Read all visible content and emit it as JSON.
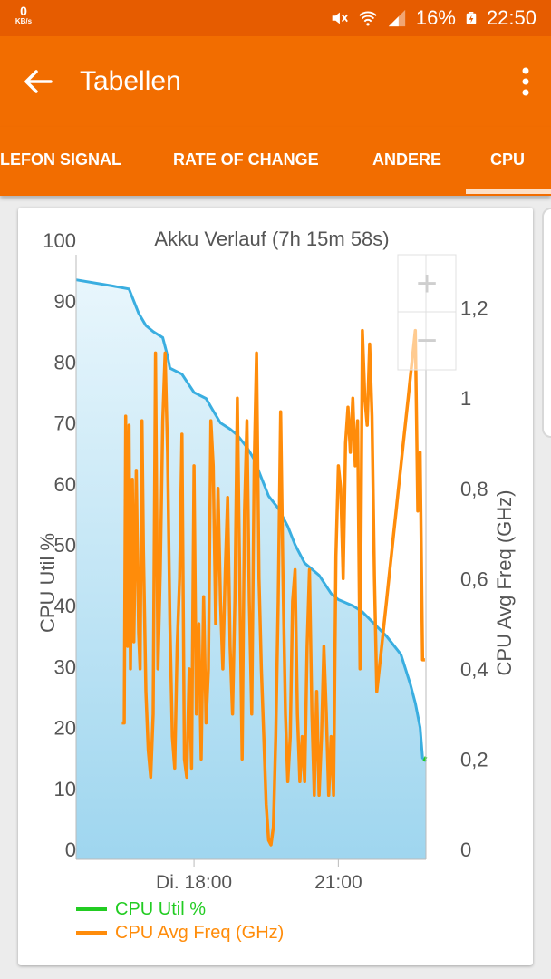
{
  "status_bar": {
    "net_speed": "0",
    "net_speed_unit": "KB/s",
    "battery": "16%",
    "time": "22:50"
  },
  "app_bar": {
    "title": "Tabellen",
    "back_icon": "arrow-left-icon",
    "menu_icon": "more-vert-icon"
  },
  "tabs": [
    {
      "label": "LEFON SIGNAL",
      "selected": false
    },
    {
      "label": "RATE OF CHANGE",
      "selected": false
    },
    {
      "label": "ANDERE",
      "selected": false
    },
    {
      "label": "CPU",
      "selected": true
    }
  ],
  "zoom": {
    "in_label": "+",
    "out_label": "−"
  },
  "colors": {
    "accent": "#f26d00",
    "status_bar": "#e65c00",
    "battery_line": "#3aaee0",
    "battery_fill": "#9fd6ef",
    "cpu_util": "#22cc22",
    "cpu_freq": "#ff8c0a"
  },
  "chart_data": {
    "type": "line",
    "title": "Akku Verlauf (7h 15m 58s)",
    "ylabel": "CPU Util %",
    "y2label": "CPU Avg Freq (GHz)",
    "ylim": [
      0,
      100
    ],
    "y2lim": [
      0,
      1.35
    ],
    "y_ticks": [
      "100",
      "90",
      "80",
      "70",
      "60",
      "50",
      "40",
      "30",
      "20",
      "10",
      "0"
    ],
    "y2_ticks": [
      "1,2",
      "1",
      "0,8",
      "0,6",
      "0,4",
      "0,2",
      "0"
    ],
    "x_ticks": [
      "Di. 18:00",
      "21:00"
    ],
    "xlim": [
      15.55,
      22.82
    ],
    "x_tick_hours": [
      18,
      21
    ],
    "battery_area": {
      "x": [
        15.55,
        16.3,
        16.65,
        16.85,
        17.0,
        17.15,
        17.35,
        17.45,
        17.5,
        17.75,
        18.0,
        18.25,
        18.4,
        18.55,
        18.75,
        18.9,
        19.1,
        19.25,
        19.4,
        19.55,
        19.75,
        19.95,
        20.1,
        20.3,
        20.6,
        20.85,
        21.0,
        21.3,
        21.5,
        21.75,
        22.0,
        22.3,
        22.5,
        22.6,
        22.7,
        22.75,
        22.82
      ],
      "values": [
        93.5,
        92.5,
        92,
        88,
        86,
        85,
        84,
        81,
        79,
        78,
        75,
        74,
        72,
        70,
        69,
        68,
        66,
        64,
        61,
        58,
        56,
        53,
        50,
        47,
        45,
        42,
        41,
        40,
        39,
        37,
        35,
        32,
        27,
        24,
        20,
        15,
        14.5
      ]
    },
    "series": [
      {
        "name": "CPU Util %",
        "x": [
          22.78,
          22.82
        ],
        "values": [
          14.5,
          15.2
        ]
      },
      {
        "name": "CPU Avg Freq (GHz)",
        "x": [
          16.5,
          16.55,
          16.58,
          16.62,
          16.65,
          16.68,
          16.72,
          16.75,
          16.8,
          16.85,
          16.88,
          16.92,
          16.95,
          17.0,
          17.05,
          17.1,
          17.15,
          17.2,
          17.25,
          17.3,
          17.35,
          17.4,
          17.45,
          17.5,
          17.55,
          17.6,
          17.65,
          17.7,
          17.75,
          17.8,
          17.85,
          17.9,
          17.95,
          18.0,
          18.05,
          18.1,
          18.15,
          18.2,
          18.25,
          18.3,
          18.35,
          18.4,
          18.45,
          18.5,
          18.55,
          18.6,
          18.65,
          18.7,
          18.75,
          18.8,
          18.85,
          18.9,
          18.95,
          19.0,
          19.05,
          19.1,
          19.15,
          19.2,
          19.25,
          19.3,
          19.35,
          19.4,
          19.45,
          19.5,
          19.55,
          19.6,
          19.65,
          19.7,
          19.75,
          19.8,
          19.85,
          19.9,
          19.95,
          20.0,
          20.05,
          20.1,
          20.15,
          20.2,
          20.25,
          20.3,
          20.35,
          20.4,
          20.45,
          20.5,
          20.55,
          20.6,
          20.65,
          20.7,
          20.75,
          20.8,
          20.85,
          20.9,
          20.95,
          21.0,
          21.05,
          21.1,
          21.15,
          21.2,
          21.25,
          21.3,
          21.35,
          21.4,
          21.45,
          21.5,
          21.55,
          21.6,
          21.65,
          21.7,
          21.75,
          21.8,
          21.85,
          21.9,
          21.95,
          22.0,
          22.05,
          22.1,
          22.15,
          22.2,
          22.25,
          22.3,
          22.35,
          22.4,
          22.45,
          22.5,
          22.55,
          22.6,
          22.65,
          22.7,
          22.75,
          22.8
        ],
        "values": [
          0.28,
          0.28,
          0.96,
          0.45,
          0.94,
          0.4,
          0.82,
          0.46,
          0.84,
          0.48,
          0.4,
          0.95,
          0.66,
          0.35,
          0.22,
          0.16,
          0.3,
          1.1,
          0.4,
          0.62,
          0.95,
          1.1,
          0.88,
          0.5,
          0.25,
          0.18,
          0.45,
          0.6,
          0.92,
          0.2,
          0.16,
          0.4,
          0.18,
          0.85,
          0.3,
          0.5,
          0.2,
          0.56,
          0.28,
          0.4,
          0.95,
          0.85,
          0.5,
          0.8,
          0.55,
          0.4,
          0.62,
          0.78,
          0.45,
          0.3,
          0.55,
          1.0,
          0.6,
          0.2,
          0.75,
          0.95,
          0.55,
          0.3,
          0.85,
          1.1,
          0.6,
          0.4,
          0.25,
          0.1,
          0.02,
          0.01,
          0.05,
          0.25,
          0.55,
          0.97,
          0.6,
          0.3,
          0.15,
          0.25,
          0.55,
          0.62,
          0.3,
          0.15,
          0.25,
          0.15,
          0.45,
          0.62,
          0.3,
          0.12,
          0.35,
          0.12,
          0.25,
          0.45,
          0.3,
          0.12,
          0.25,
          0.12,
          0.65,
          0.85,
          0.8,
          0.6,
          0.9,
          0.98,
          0.88,
          1.0,
          0.85,
          0.95,
          0.4,
          1.15,
          1.0,
          0.94,
          1.12,
          0.96,
          0.6,
          0.35,
          0.4,
          0.45,
          0.5,
          0.55,
          0.6,
          0.65,
          0.7,
          0.75,
          0.8,
          0.85,
          0.9,
          0.95,
          1.0,
          1.05,
          1.1,
          1.15,
          0.75,
          0.88,
          0.42,
          0.42
        ]
      }
    ],
    "legend_position": "bottom-left",
    "grid": false
  }
}
